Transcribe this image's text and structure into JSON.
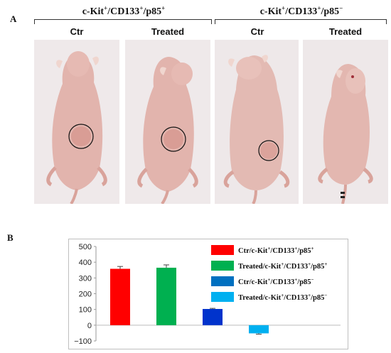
{
  "panel_a": {
    "letter": "A",
    "groups": [
      {
        "title": "c-Kit+/CD133+/p85+",
        "photos": [
          {
            "label": "Ctr",
            "tumor": "circled"
          },
          {
            "label": "Treated",
            "tumor": "circled"
          }
        ]
      },
      {
        "title": "c-Kit+/CD133+/p85−",
        "photos": [
          {
            "label": "Ctr",
            "tumor": "circled"
          },
          {
            "label": "Treated",
            "tumor": "none"
          }
        ]
      }
    ]
  },
  "panel_b": {
    "letter": "B"
  },
  "chart_data": {
    "type": "bar",
    "categories": [
      "Ctr/c-Kit+/CD133+/p85+",
      "Treated/c-Kit+/CD133+/p85+",
      "Ctr/c-Kit+/CD133+/p85−",
      "Treated/c-Kit+/CD133+/p85−"
    ],
    "values": [
      358,
      365,
      103,
      -52
    ],
    "errors": [
      15,
      18,
      4,
      5
    ],
    "colors": [
      "#ff0000",
      "#00b050",
      "#0033cc",
      "#00b0f0"
    ],
    "legend_colors": [
      "#ff0000",
      "#00b050",
      "#0070c0",
      "#00b0f0"
    ],
    "ylim": [
      -100,
      500
    ],
    "yticks": [
      -100,
      0,
      100,
      200,
      300,
      400,
      500
    ],
    "legend_position": "top-right",
    "grid": false,
    "title": "",
    "xlabel": "",
    "ylabel": ""
  }
}
